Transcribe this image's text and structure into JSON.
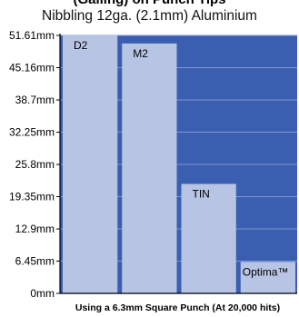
{
  "chart_data": {
    "type": "bar",
    "title": "(Galling) on Punch Tips",
    "subtitle": "Nibbling 12ga. (2.1mm) Aluminium",
    "xlabel": "Using a 6.3mm Square Punch (At 20,000 hits)",
    "ylabel": "",
    "categories": [
      "D2",
      "M2",
      "TIN",
      "Optima™"
    ],
    "values": [
      51.61,
      50.0,
      21.9,
      6.3
    ],
    "ylim": [
      0,
      51.61
    ],
    "yticks": [
      "0mm",
      "6.45mm",
      "12.9mm",
      "19.35mm",
      "25.8mm",
      "32.25mm",
      "38.7mm",
      "45.16mm",
      "51.61mm"
    ],
    "ytick_values": [
      0,
      6.45,
      12.9,
      19.35,
      25.8,
      32.25,
      38.7,
      45.16,
      51.61
    ],
    "grid": true,
    "colors": {
      "plot_bg": "#3a5eb0",
      "bar": "#b8c4e4",
      "grid": "#7e97cf",
      "axis": "#000000"
    }
  }
}
